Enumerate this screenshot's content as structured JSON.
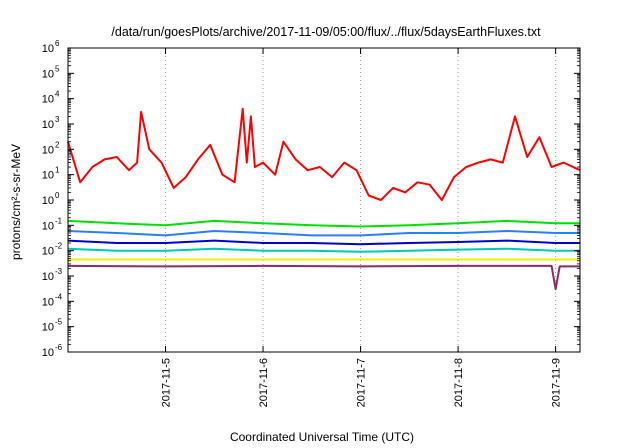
{
  "chart_data": {
    "type": "line",
    "title": "/data/run/goesPlots/archive/2017-11-09/05:00/flux/../flux/5daysEarthFluxes.txt",
    "xlabel": "Coordinated Universal Time (UTC)",
    "ylabel": "protons/cm²-s-sr-MeV",
    "y_scale": "log",
    "ylim": [
      "1e-6",
      "1e6"
    ],
    "xlim": [
      "2017-11-04 00:00",
      "2017-11-09 06:00"
    ],
    "y_ticks": [
      {
        "base": "10",
        "exp": "-6",
        "value": 1e-06
      },
      {
        "base": "10",
        "exp": "-5",
        "value": 1e-05
      },
      {
        "base": "10",
        "exp": "-4",
        "value": 0.0001
      },
      {
        "base": "10",
        "exp": "-3",
        "value": 0.001
      },
      {
        "base": "10",
        "exp": "-2",
        "value": 0.01
      },
      {
        "base": "10",
        "exp": "-1",
        "value": 0.1
      },
      {
        "base": "10",
        "exp": "0",
        "value": 1
      },
      {
        "base": "10",
        "exp": "1",
        "value": 10
      },
      {
        "base": "10",
        "exp": "2",
        "value": 100
      },
      {
        "base": "10",
        "exp": "3",
        "value": 1000
      },
      {
        "base": "10",
        "exp": "4",
        "value": 10000
      },
      {
        "base": "10",
        "exp": "5",
        "value": 100000
      },
      {
        "base": "10",
        "exp": "6",
        "value": 1000000
      }
    ],
    "x_ticks": [
      {
        "label": "2017-11-5",
        "time": "2017-11-05 00:00"
      },
      {
        "label": "2017-11-6",
        "time": "2017-11-06 00:00"
      },
      {
        "label": "2017-11-7",
        "time": "2017-11-07 00:00"
      },
      {
        "label": "2017-11-8",
        "time": "2017-11-08 00:00"
      },
      {
        "label": "2017-11-9",
        "time": "2017-11-09 00:00"
      }
    ],
    "grid": "vertical dotted",
    "legend": "none",
    "series": [
      {
        "color": "#ff0000",
        "x": [
          "2017-11-04 00:00",
          "2017-11-04 03:00",
          "2017-11-04 06:00",
          "2017-11-04 09:00",
          "2017-11-04 12:00",
          "2017-11-04 15:00",
          "2017-11-04 17:00",
          "2017-11-04 18:00",
          "2017-11-04 20:00",
          "2017-11-04 23:00",
          "2017-11-05 02:00",
          "2017-11-05 05:00",
          "2017-11-05 08:00",
          "2017-11-05 11:00",
          "2017-11-05 14:00",
          "2017-11-05 17:00",
          "2017-11-05 19:00",
          "2017-11-05 20:00",
          "2017-11-05 21:00",
          "2017-11-05 22:00",
          "2017-11-06 00:00",
          "2017-11-06 03:00",
          "2017-11-06 05:00",
          "2017-11-06 08:00",
          "2017-11-06 11:00",
          "2017-11-06 14:00",
          "2017-11-06 17:00",
          "2017-11-06 20:00",
          "2017-11-06 23:00",
          "2017-11-07 02:00",
          "2017-11-07 05:00",
          "2017-11-07 08:00",
          "2017-11-07 11:00",
          "2017-11-07 14:00",
          "2017-11-07 17:00",
          "2017-11-07 20:00",
          "2017-11-07 23:00",
          "2017-11-08 02:00",
          "2017-11-08 05:00",
          "2017-11-08 08:00",
          "2017-11-08 11:00",
          "2017-11-08 14:00",
          "2017-11-08 17:00",
          "2017-11-08 20:00",
          "2017-11-08 23:00",
          "2017-11-09 02:00",
          "2017-11-09 06:00"
        ],
        "y": [
          200,
          5,
          20,
          40,
          50,
          15,
          30,
          3000,
          100,
          30,
          3,
          8,
          40,
          150,
          10,
          5,
          4000,
          30,
          2000,
          20,
          30,
          10,
          200,
          40,
          15,
          20,
          8,
          30,
          15,
          1.5,
          1,
          3,
          2,
          5,
          4,
          1,
          8,
          20,
          30,
          40,
          30,
          2000,
          50,
          300,
          20,
          30,
          15
        ]
      },
      {
        "color": "#00e000",
        "x": [
          "2017-11-04 00:00",
          "2017-11-04 12:00",
          "2017-11-05 00:00",
          "2017-11-05 12:00",
          "2017-11-06 00:00",
          "2017-11-06 12:00",
          "2017-11-07 00:00",
          "2017-11-07 12:00",
          "2017-11-08 00:00",
          "2017-11-08 12:00",
          "2017-11-09 00:00",
          "2017-11-09 06:00"
        ],
        "y": [
          0.15,
          0.12,
          0.1,
          0.15,
          0.12,
          0.1,
          0.09,
          0.1,
          0.12,
          0.15,
          0.12,
          0.12
        ]
      },
      {
        "color": "#2a7fff",
        "x": [
          "2017-11-04 00:00",
          "2017-11-04 12:00",
          "2017-11-05 00:00",
          "2017-11-05 12:00",
          "2017-11-06 00:00",
          "2017-11-06 12:00",
          "2017-11-07 00:00",
          "2017-11-07 12:00",
          "2017-11-08 00:00",
          "2017-11-08 12:00",
          "2017-11-09 00:00",
          "2017-11-09 06:00"
        ],
        "y": [
          0.06,
          0.05,
          0.04,
          0.06,
          0.05,
          0.04,
          0.04,
          0.05,
          0.05,
          0.06,
          0.05,
          0.05
        ]
      },
      {
        "color": "#0000cc",
        "x": [
          "2017-11-04 00:00",
          "2017-11-04 12:00",
          "2017-11-05 00:00",
          "2017-11-05 12:00",
          "2017-11-06 00:00",
          "2017-11-06 12:00",
          "2017-11-07 00:00",
          "2017-11-07 12:00",
          "2017-11-08 00:00",
          "2017-11-08 12:00",
          "2017-11-09 00:00",
          "2017-11-09 06:00"
        ],
        "y": [
          0.025,
          0.02,
          0.02,
          0.025,
          0.02,
          0.02,
          0.018,
          0.02,
          0.022,
          0.025,
          0.02,
          0.02
        ]
      },
      {
        "color": "#00c8b4",
        "x": [
          "2017-11-04 00:00",
          "2017-11-04 12:00",
          "2017-11-05 00:00",
          "2017-11-05 12:00",
          "2017-11-06 00:00",
          "2017-11-06 12:00",
          "2017-11-07 00:00",
          "2017-11-07 12:00",
          "2017-11-08 00:00",
          "2017-11-08 12:00",
          "2017-11-09 00:00",
          "2017-11-09 06:00"
        ],
        "y": [
          0.012,
          0.01,
          0.01,
          0.012,
          0.01,
          0.01,
          0.009,
          0.01,
          0.011,
          0.012,
          0.01,
          0.01
        ]
      },
      {
        "color": "#f0f000",
        "x": [
          "2017-11-04 00:00",
          "2017-11-05 00:00",
          "2017-11-06 00:00",
          "2017-11-07 00:00",
          "2017-11-08 00:00",
          "2017-11-09 00:00",
          "2017-11-09 06:00"
        ],
        "y": [
          0.0045,
          0.0045,
          0.0045,
          0.0045,
          0.0045,
          0.0045,
          0.0045
        ]
      },
      {
        "color": "#8b2a6b",
        "x": [
          "2017-11-04 00:00",
          "2017-11-05 00:00",
          "2017-11-06 00:00",
          "2017-11-07 00:00",
          "2017-11-08 00:00",
          "2017-11-08 23:00",
          "2017-11-09 00:00",
          "2017-11-09 01:00",
          "2017-11-09 06:00"
        ],
        "y": [
          0.0025,
          0.0024,
          0.0025,
          0.0024,
          0.0025,
          0.0025,
          0.0003,
          0.0024,
          0.0024
        ]
      }
    ]
  }
}
